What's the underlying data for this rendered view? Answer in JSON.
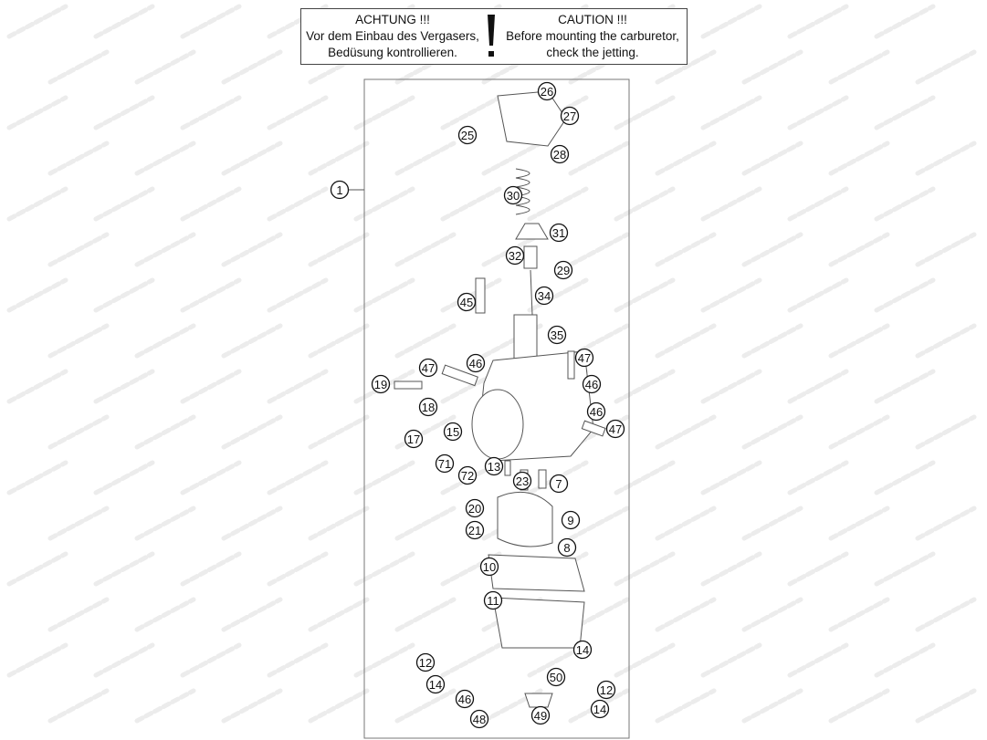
{
  "watermark": "motod.ru",
  "notice": {
    "german_title": "ACHTUNG !!!",
    "german_line1": "Vor dem Einbau des Vergasers,",
    "german_line2": "Bedüsung kontrollieren.",
    "english_title": "CAUTION !!!",
    "english_line1": "Before mounting the carburetor,",
    "english_line2": "check the jetting.",
    "icon": "exclamation-icon"
  },
  "callouts": [
    "26",
    "27",
    "25",
    "28",
    "1",
    "30",
    "31",
    "32",
    "29",
    "34",
    "45",
    "35",
    "47",
    "46",
    "47",
    "46",
    "19",
    "18",
    "46",
    "47",
    "15",
    "17",
    "71",
    "72",
    "13",
    "23",
    "7",
    "20",
    "9",
    "21",
    "8",
    "10",
    "11",
    "14",
    "12",
    "50",
    "14",
    "12",
    "46",
    "49",
    "14",
    "48"
  ]
}
